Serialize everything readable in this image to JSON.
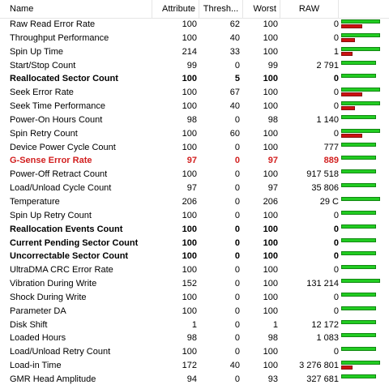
{
  "columns": {
    "name": "Name",
    "attribute": "Attribute",
    "threshold": "Thresh...",
    "worst": "Worst",
    "raw": "RAW"
  },
  "colors": {
    "good_bar": "#22cc22",
    "bad_bar": "#cc1111",
    "alert_text": "#d21f1f"
  },
  "rows": [
    {
      "name": "Raw Read Error Rate",
      "attribute": "100",
      "threshold": "62",
      "worst": "100",
      "raw": "0",
      "style": "normal",
      "green": 1.0,
      "red": 0.55
    },
    {
      "name": "Throughput Performance",
      "attribute": "100",
      "threshold": "40",
      "worst": "100",
      "raw": "0",
      "style": "normal",
      "green": 1.0,
      "red": 0.35
    },
    {
      "name": "Spin Up Time",
      "attribute": "214",
      "threshold": "33",
      "worst": "100",
      "raw": "1",
      "style": "normal",
      "green": 1.0,
      "red": 0.3
    },
    {
      "name": "Start/Stop Count",
      "attribute": "99",
      "threshold": "0",
      "worst": "99",
      "raw": "2 791",
      "style": "normal",
      "green": 0.9,
      "red": 0
    },
    {
      "name": "Reallocated Sector Count",
      "attribute": "100",
      "threshold": "5",
      "worst": "100",
      "raw": "0",
      "style": "bold",
      "green": 0.9,
      "red": 0
    },
    {
      "name": "Seek Error Rate",
      "attribute": "100",
      "threshold": "67",
      "worst": "100",
      "raw": "0",
      "style": "normal",
      "green": 1.0,
      "red": 0.55
    },
    {
      "name": "Seek Time Performance",
      "attribute": "100",
      "threshold": "40",
      "worst": "100",
      "raw": "0",
      "style": "normal",
      "green": 1.0,
      "red": 0.35
    },
    {
      "name": "Power-On Hours Count",
      "attribute": "98",
      "threshold": "0",
      "worst": "98",
      "raw": "1 140",
      "style": "normal",
      "green": 0.9,
      "red": 0
    },
    {
      "name": "Spin Retry Count",
      "attribute": "100",
      "threshold": "60",
      "worst": "100",
      "raw": "0",
      "style": "normal",
      "green": 1.0,
      "red": 0.55
    },
    {
      "name": "Device Power Cycle Count",
      "attribute": "100",
      "threshold": "0",
      "worst": "100",
      "raw": "777",
      "style": "normal",
      "green": 0.9,
      "red": 0
    },
    {
      "name": "G-Sense Error Rate",
      "attribute": "97",
      "threshold": "0",
      "worst": "97",
      "raw": "889",
      "style": "alert",
      "green": 0.9,
      "red": 0
    },
    {
      "name": "Power-Off Retract Count",
      "attribute": "100",
      "threshold": "0",
      "worst": "100",
      "raw": "917 518",
      "style": "normal",
      "green": 0.9,
      "red": 0
    },
    {
      "name": "Load/Unload Cycle Count",
      "attribute": "97",
      "threshold": "0",
      "worst": "97",
      "raw": "35 806",
      "style": "normal",
      "green": 0.9,
      "red": 0
    },
    {
      "name": "Temperature",
      "attribute": "206",
      "threshold": "0",
      "worst": "206",
      "raw": "29 C",
      "style": "normal",
      "green": 1.0,
      "red": 0
    },
    {
      "name": "Spin Up Retry Count",
      "attribute": "100",
      "threshold": "0",
      "worst": "100",
      "raw": "0",
      "style": "normal",
      "green": 0.9,
      "red": 0
    },
    {
      "name": "Reallocation Events Count",
      "attribute": "100",
      "threshold": "0",
      "worst": "100",
      "raw": "0",
      "style": "bold",
      "green": 0.9,
      "red": 0
    },
    {
      "name": "Current Pending Sector Count",
      "attribute": "100",
      "threshold": "0",
      "worst": "100",
      "raw": "0",
      "style": "bold",
      "green": 0.9,
      "red": 0
    },
    {
      "name": "Uncorrectable Sector Count",
      "attribute": "100",
      "threshold": "0",
      "worst": "100",
      "raw": "0",
      "style": "bold",
      "green": 0.9,
      "red": 0
    },
    {
      "name": "UltraDMA CRC Error Rate",
      "attribute": "100",
      "threshold": "0",
      "worst": "100",
      "raw": "0",
      "style": "normal",
      "green": 0.9,
      "red": 0
    },
    {
      "name": "Vibration During Write",
      "attribute": "152",
      "threshold": "0",
      "worst": "100",
      "raw": "131 214",
      "style": "normal",
      "green": 1.0,
      "red": 0
    },
    {
      "name": "Shock During Write",
      "attribute": "100",
      "threshold": "0",
      "worst": "100",
      "raw": "0",
      "style": "normal",
      "green": 0.9,
      "red": 0
    },
    {
      "name": "Parameter DA",
      "attribute": "100",
      "threshold": "0",
      "worst": "100",
      "raw": "0",
      "style": "normal",
      "green": 0.9,
      "red": 0
    },
    {
      "name": "Disk Shift",
      "attribute": "1",
      "threshold": "0",
      "worst": "1",
      "raw": "12 172",
      "style": "normal",
      "green": 0.9,
      "red": 0
    },
    {
      "name": "Loaded Hours",
      "attribute": "98",
      "threshold": "0",
      "worst": "98",
      "raw": "1 083",
      "style": "normal",
      "green": 0.9,
      "red": 0
    },
    {
      "name": "Load/Unload Retry Count",
      "attribute": "100",
      "threshold": "0",
      "worst": "100",
      "raw": "0",
      "style": "normal",
      "green": 0.9,
      "red": 0
    },
    {
      "name": "Load-in Time",
      "attribute": "172",
      "threshold": "40",
      "worst": "100",
      "raw": "3 276 801",
      "style": "normal",
      "green": 1.0,
      "red": 0.3
    },
    {
      "name": "GMR Head Amplitude",
      "attribute": "94",
      "threshold": "0",
      "worst": "93",
      "raw": "327 681",
      "style": "normal",
      "green": 0.9,
      "red": 0
    }
  ]
}
